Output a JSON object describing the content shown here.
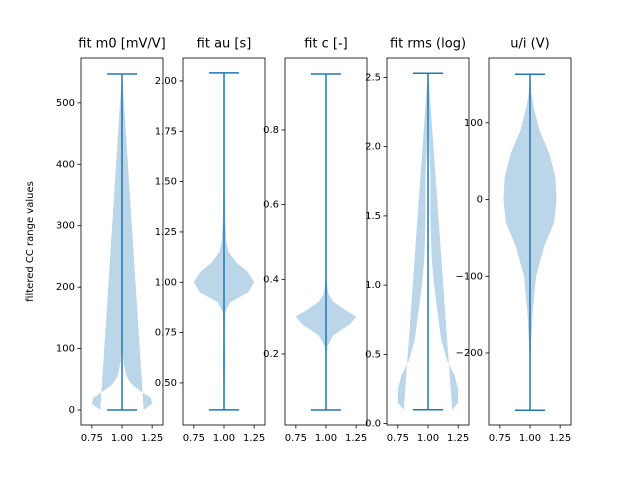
{
  "chart_data": [
    {
      "type": "violin",
      "title": "fit m0 [mV/V]",
      "ylabel": "filtered CC range values",
      "color": "#1f77b4",
      "position": 1,
      "min": 0,
      "max": 547,
      "violin": {
        "y": [
          0,
          10,
          20,
          30,
          40,
          50,
          60,
          70,
          80,
          100,
          150,
          300,
          547
        ],
        "halfwidth": [
          0.18,
          0.25,
          0.24,
          0.16,
          0.09,
          0.05,
          0.03,
          0.02,
          0.01,
          0.005,
          0.003,
          0.002,
          0.001
        ]
      },
      "xlim": [
        0.66,
        1.34
      ],
      "xticks": [
        0.75,
        {
          "value": 1,
          "label": "1.00"
        },
        1.25
      ],
      "ylim": [
        -24.4,
        573
      ],
      "yticks": [
        0,
        100,
        200,
        300,
        400,
        500
      ]
    },
    {
      "type": "violin",
      "title": "fit au [s]",
      "color": "#1f77b4",
      "position": 1,
      "min": 0.366,
      "max": 2.04,
      "violin": {
        "y": [
          0.366,
          0.5,
          0.6,
          0.75,
          0.85,
          0.9,
          0.95,
          1.0,
          1.05,
          1.1,
          1.15,
          1.2,
          1.3,
          1.5,
          2.04
        ],
        "halfwidth": [
          0.002,
          0.005,
          0.01,
          0.005,
          0.01,
          0.05,
          0.2,
          0.25,
          0.2,
          0.1,
          0.04,
          0.02,
          0.01,
          0.004,
          0.002
        ]
      },
      "xlim": [
        0.66,
        1.34
      ],
      "xticks": [
        0.75,
        {
          "value": 1,
          "label": "1.00"
        },
        1.25
      ],
      "ylim": [
        0.291,
        2.114
      ],
      "yticks": [
        {
          "value": 0.5,
          "label": "0.50"
        },
        0.75,
        {
          "value": 1,
          "label": "1.00"
        },
        1.25,
        {
          "value": 1.5,
          "label": "1.50"
        },
        1.75,
        {
          "value": 2,
          "label": "2.00"
        }
      ]
    },
    {
      "type": "violin",
      "title": "fit c [-]",
      "color": "#1f77b4",
      "position": 1,
      "min": 0.05,
      "max": 0.95,
      "violin": {
        "y": [
          0.05,
          0.2,
          0.22,
          0.25,
          0.28,
          0.3,
          0.32,
          0.34,
          0.36,
          0.4,
          0.6,
          0.95
        ],
        "halfwidth": [
          0.001,
          0.003,
          0.01,
          0.06,
          0.2,
          0.25,
          0.15,
          0.06,
          0.02,
          0.004,
          0.002,
          0.001
        ]
      },
      "xlim": [
        0.66,
        1.34
      ],
      "xticks": [
        0.75,
        {
          "value": 1,
          "label": "1.00"
        },
        1.25
      ],
      "ylim": [
        0.0098,
        0.9928
      ],
      "yticks": [
        0.2,
        0.4,
        0.6,
        0.8
      ]
    },
    {
      "type": "violin",
      "title": "fit rms (log)",
      "color": "#1f77b4",
      "position": 1,
      "min": 0.1,
      "max": 2.53,
      "violin": {
        "y": [
          0.1,
          0.15,
          0.25,
          0.35,
          0.45,
          0.6,
          0.8,
          1.0,
          1.2,
          1.5,
          1.8,
          2.0,
          2.2,
          2.53
        ],
        "halfwidth": [
          0.2,
          0.25,
          0.25,
          0.22,
          0.16,
          0.11,
          0.08,
          0.05,
          0.03,
          0.02,
          0.02,
          0.01,
          0.005,
          0.002
        ]
      },
      "xlim": [
        0.66,
        1.34
      ],
      "xticks": [
        0.75,
        {
          "value": 1,
          "label": "1.00"
        },
        1.25
      ],
      "ylim": [
        -0.01,
        2.64
      ],
      "yticks": [
        {
          "value": 0,
          "label": "0.0"
        },
        0.5,
        {
          "value": 1,
          "label": "1.0"
        },
        1.5,
        {
          "value": 2,
          "label": "2.0"
        },
        2.5
      ]
    },
    {
      "type": "violin",
      "title": "u/i (V)",
      "color": "#1f77b4",
      "position": 1,
      "min": -274.6,
      "max": 163.3,
      "violin": {
        "y": [
          -274.6,
          -200,
          -150,
          -100,
          -60,
          -30,
          0,
          30,
          60,
          90,
          120,
          140,
          163.3
        ],
        "halfwidth": [
          0.001,
          0.005,
          0.02,
          0.05,
          0.12,
          0.2,
          0.22,
          0.21,
          0.16,
          0.08,
          0.03,
          0.01,
          0.002
        ]
      },
      "xlim": [
        0.66,
        1.34
      ],
      "xticks": [
        0.75,
        {
          "value": 1,
          "label": "1.00"
        },
        1.25
      ],
      "ylim": [
        -293.9,
        184.5
      ],
      "yticks": [
        {
          "value": -200,
          "label": "−200"
        },
        {
          "value": -100,
          "label": "−100"
        },
        0,
        100
      ]
    }
  ]
}
